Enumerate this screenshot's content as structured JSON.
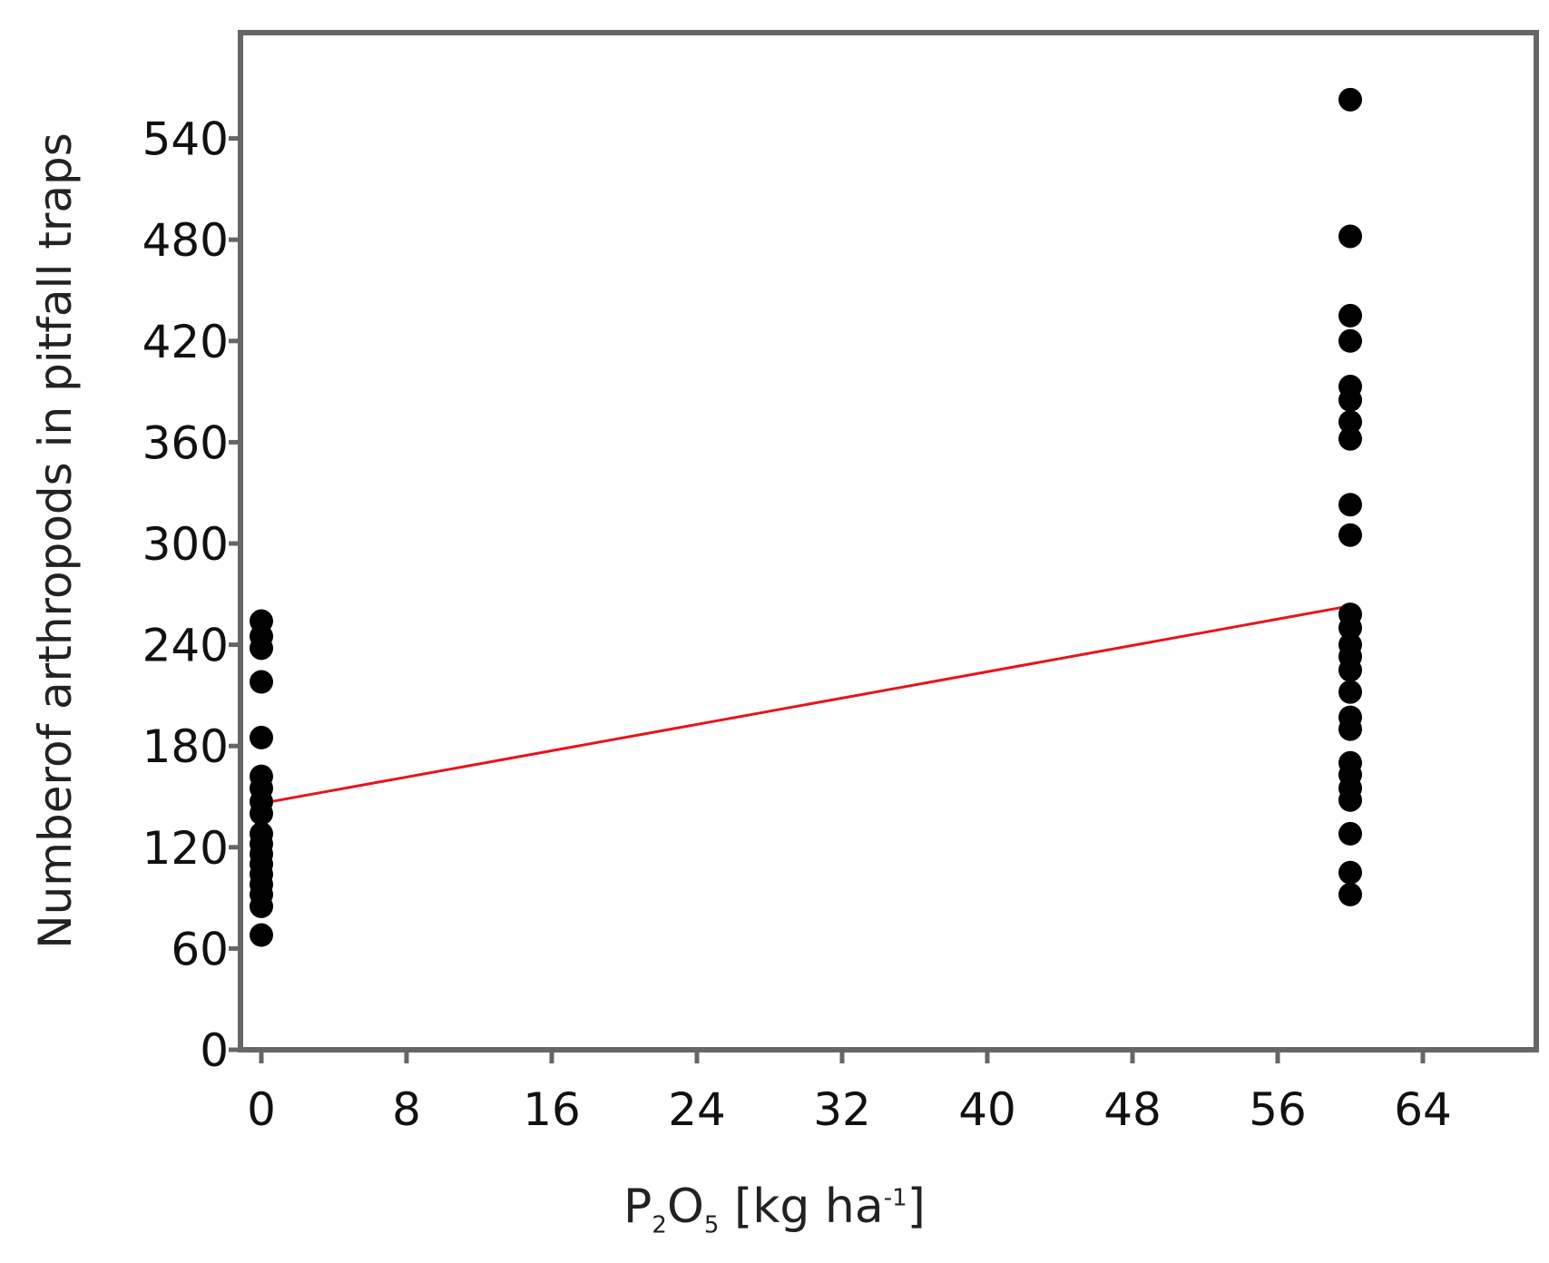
{
  "chart_data": {
    "type": "scatter",
    "title": "",
    "xlabel": "",
    "ylabel": "Numberof arthropods in pitfall traps",
    "xlabel_parts": {
      "p": "P",
      "sub1": "2",
      "o": "O",
      "sub2": "5",
      "unit": " [kg ha",
      "sup": "-1",
      "close": "]"
    },
    "xlim": [
      0,
      70
    ],
    "ylim": [
      0,
      600
    ],
    "xticks": [
      0,
      8,
      16,
      24,
      32,
      40,
      48,
      56,
      64
    ],
    "yticks": [
      0,
      60,
      120,
      180,
      240,
      300,
      360,
      420,
      480,
      540
    ],
    "grid": false,
    "series": [
      {
        "marker_color": "#000000",
        "points": [
          {
            "x": 0,
            "y": 68
          },
          {
            "x": 0,
            "y": 85
          },
          {
            "x": 0,
            "y": 92
          },
          {
            "x": 0,
            "y": 98
          },
          {
            "x": 0,
            "y": 104
          },
          {
            "x": 0,
            "y": 110
          },
          {
            "x": 0,
            "y": 116
          },
          {
            "x": 0,
            "y": 122
          },
          {
            "x": 0,
            "y": 128
          },
          {
            "x": 0,
            "y": 140
          },
          {
            "x": 0,
            "y": 147
          },
          {
            "x": 0,
            "y": 155
          },
          {
            "x": 0,
            "y": 162
          },
          {
            "x": 0,
            "y": 185
          },
          {
            "x": 0,
            "y": 218
          },
          {
            "x": 0,
            "y": 238
          },
          {
            "x": 0,
            "y": 245
          },
          {
            "x": 0,
            "y": 254
          },
          {
            "x": 60,
            "y": 92
          },
          {
            "x": 60,
            "y": 105
          },
          {
            "x": 60,
            "y": 128
          },
          {
            "x": 60,
            "y": 148
          },
          {
            "x": 60,
            "y": 155
          },
          {
            "x": 60,
            "y": 163
          },
          {
            "x": 60,
            "y": 170
          },
          {
            "x": 60,
            "y": 190
          },
          {
            "x": 60,
            "y": 197
          },
          {
            "x": 60,
            "y": 212
          },
          {
            "x": 60,
            "y": 225
          },
          {
            "x": 60,
            "y": 233
          },
          {
            "x": 60,
            "y": 240
          },
          {
            "x": 60,
            "y": 250
          },
          {
            "x": 60,
            "y": 258
          },
          {
            "x": 60,
            "y": 305
          },
          {
            "x": 60,
            "y": 323
          },
          {
            "x": 60,
            "y": 362
          },
          {
            "x": 60,
            "y": 372
          },
          {
            "x": 60,
            "y": 385
          },
          {
            "x": 60,
            "y": 393
          },
          {
            "x": 60,
            "y": 420
          },
          {
            "x": 60,
            "y": 435
          },
          {
            "x": 60,
            "y": 482
          },
          {
            "x": 60,
            "y": 563
          }
        ]
      }
    ],
    "fit_line": {
      "x": [
        0,
        60
      ],
      "y": [
        146,
        263
      ],
      "color": "#e8141c"
    },
    "colors": {
      "axis": "#666666",
      "text": "#111111",
      "xlabel_text": "#222222"
    }
  }
}
